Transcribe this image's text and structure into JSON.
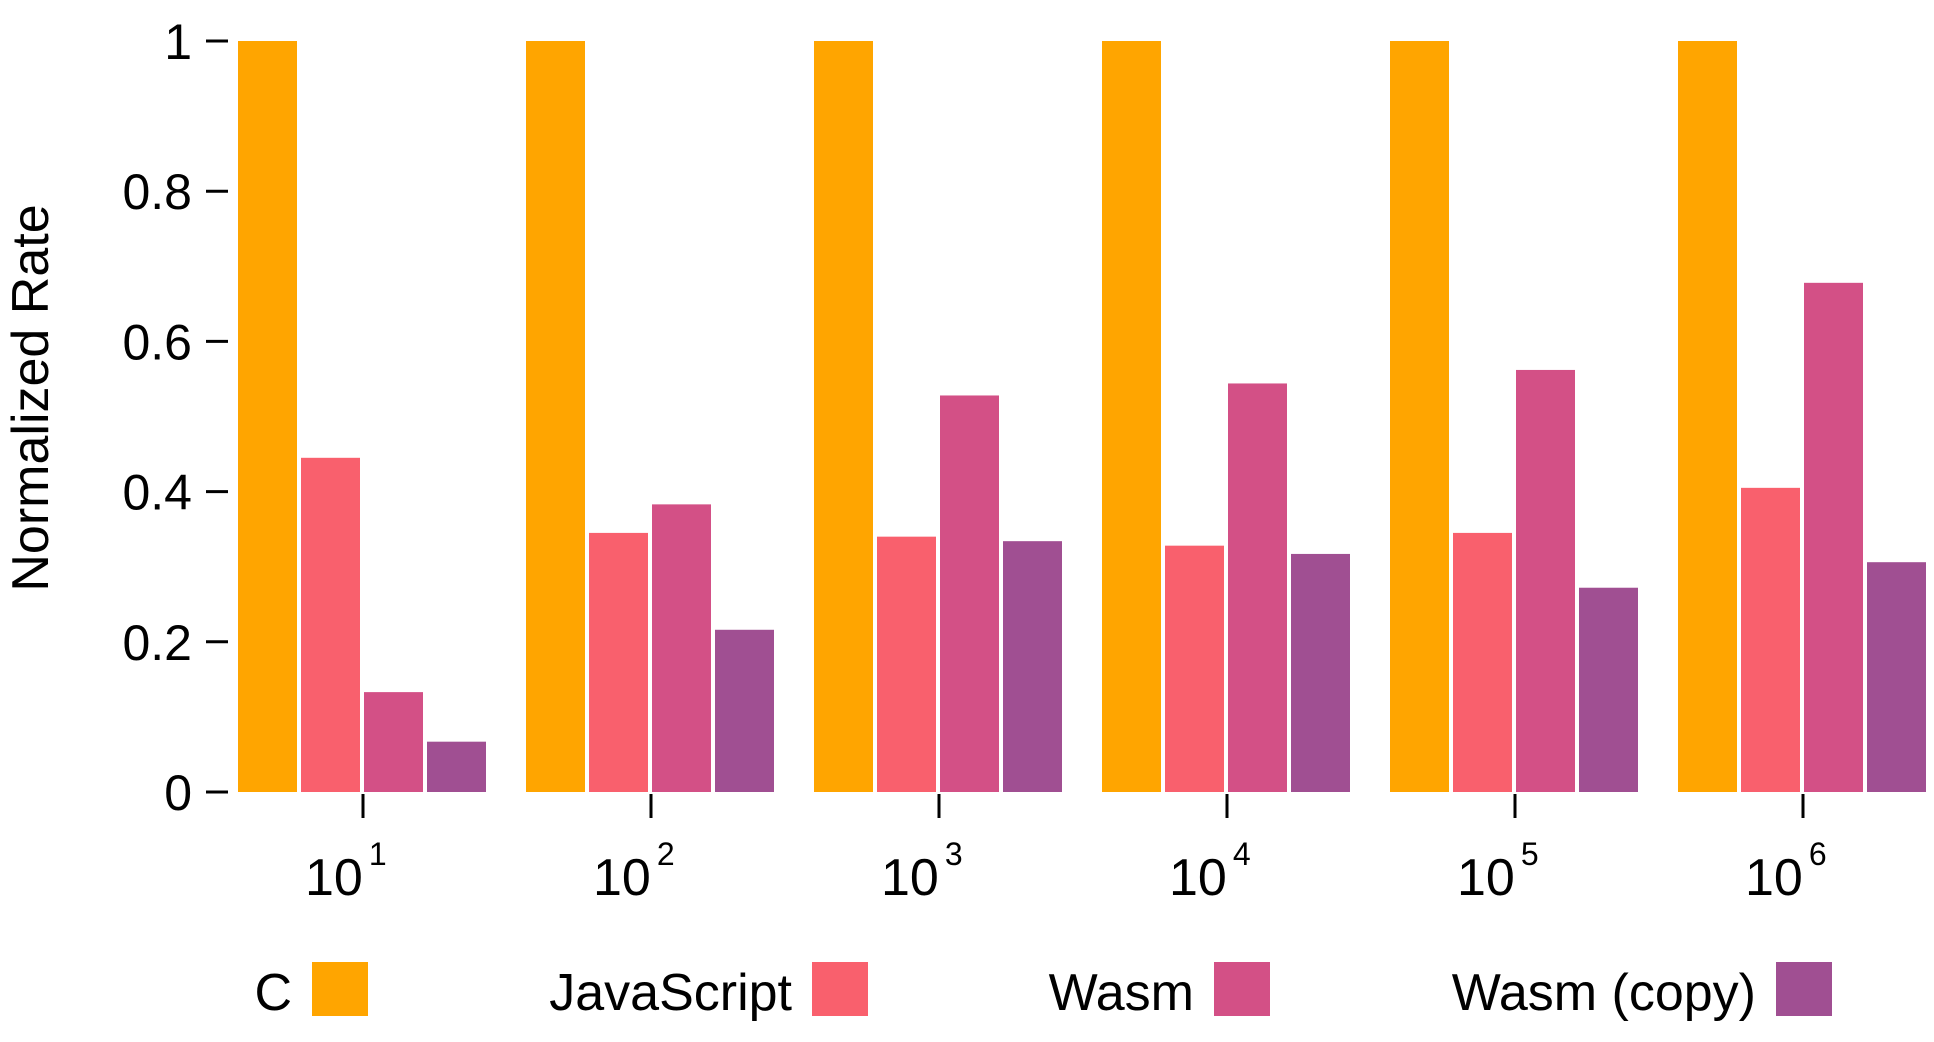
{
  "chart_data": {
    "type": "bar",
    "title": "",
    "xlabel": "",
    "ylabel": "Normalized Rate",
    "ylim": [
      0,
      1
    ],
    "yticks": [
      "0",
      "0.2",
      "0.4",
      "0.6",
      "0.8",
      "1"
    ],
    "categories": [
      {
        "base": "10",
        "exp": "1"
      },
      {
        "base": "10",
        "exp": "2"
      },
      {
        "base": "10",
        "exp": "3"
      },
      {
        "base": "10",
        "exp": "4"
      },
      {
        "base": "10",
        "exp": "5"
      },
      {
        "base": "10",
        "exp": "6"
      }
    ],
    "series": [
      {
        "name": "C",
        "color": "#FFA500",
        "values": [
          1,
          1,
          1,
          1,
          1,
          1
        ]
      },
      {
        "name": "JavaScript",
        "color": "#F9606D",
        "values": [
          0.445,
          0.345,
          0.34,
          0.328,
          0.345,
          0.405
        ]
      },
      {
        "name": "Wasm",
        "color": "#D35086",
        "values": [
          0.133,
          0.383,
          0.528,
          0.544,
          0.562,
          0.678
        ]
      },
      {
        "name": "Wasm (copy)",
        "color": "#A04F92",
        "values": [
          0.067,
          0.216,
          0.334,
          0.317,
          0.272,
          0.306
        ]
      }
    ],
    "legend_position": "bottom"
  }
}
